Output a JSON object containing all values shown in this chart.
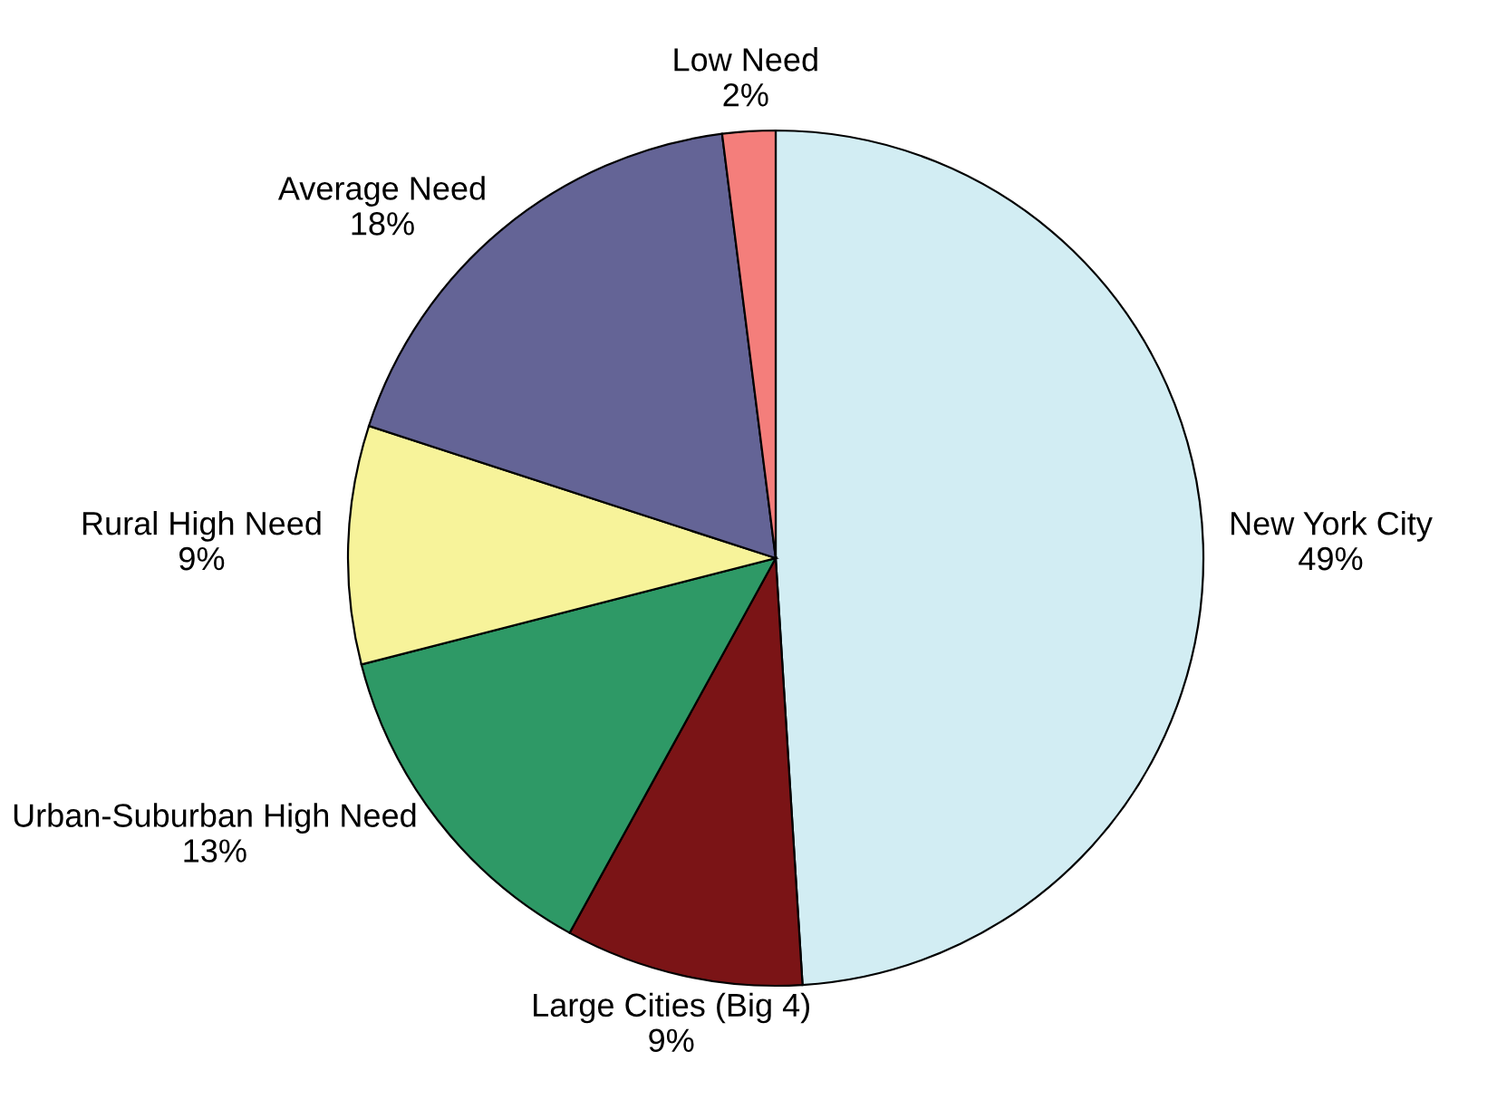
{
  "chart_data": {
    "type": "pie",
    "categories": [
      "New York City",
      "Large Cities (Big 4)",
      "Urban-Suburban High Need",
      "Rural High Need",
      "Average Need",
      "Low Need"
    ],
    "values": [
      49,
      9,
      13,
      9,
      18,
      2
    ],
    "value_labels": [
      "49%",
      "9%",
      "13%",
      "9%",
      "18%",
      "2%"
    ],
    "colors": [
      "#d2edf3",
      "#7b1416",
      "#2e9966",
      "#f7f39a",
      "#646496",
      "#f47e7b"
    ],
    "legend": false
  }
}
